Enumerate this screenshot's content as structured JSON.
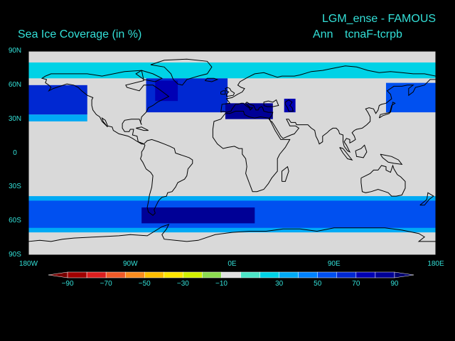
{
  "title": {
    "main": "LGM_ense - FAMOUS",
    "subtitle": "Sea Ice Coverage (in %)",
    "period": "Ann",
    "diff": "tcnaF-tcrpb"
  },
  "colors": {
    "background": "#000000",
    "text": "#33e0d8",
    "land": "#d9d9d9",
    "coast": "#000000"
  },
  "map": {
    "projection": "cylindrical-equidistant",
    "lon_range": [
      -180,
      180
    ],
    "lat_range": [
      -90,
      90
    ],
    "lat_ticks": [
      {
        "value": 90,
        "label": "90N"
      },
      {
        "value": 60,
        "label": "60N"
      },
      {
        "value": 30,
        "label": "30N"
      },
      {
        "value": 0,
        "label": "0"
      },
      {
        "value": -30,
        "label": "30S"
      },
      {
        "value": -60,
        "label": "60S"
      },
      {
        "value": -90,
        "label": "90S"
      }
    ],
    "lon_ticks": [
      {
        "value": -180,
        "label": "180W"
      },
      {
        "value": -90,
        "label": "90W"
      },
      {
        "value": 0,
        "label": "0E"
      },
      {
        "value": 90,
        "label": "90E"
      },
      {
        "value": 180,
        "label": "180E"
      }
    ],
    "field_regions": [
      {
        "name": "arctic-ring",
        "lon": [
          -180,
          180
        ],
        "lat": [
          66,
          80
        ],
        "value": 25
      },
      {
        "name": "north-pacific-west",
        "lon": [
          -180,
          -128
        ],
        "lat": [
          34,
          60
        ],
        "value": 60
      },
      {
        "name": "north-pacific-edge",
        "lon": [
          -180,
          -128
        ],
        "lat": [
          28,
          34
        ],
        "value": 35
      },
      {
        "name": "north-atlantic",
        "lon": [
          -76,
          -4
        ],
        "lat": [
          36,
          66
        ],
        "value": 60
      },
      {
        "name": "labrador-core",
        "lon": [
          -68,
          -48
        ],
        "lat": [
          46,
          64
        ],
        "value": 75
      },
      {
        "name": "mediterranean",
        "lon": [
          -6,
          36
        ],
        "lat": [
          30,
          44
        ],
        "value": 80
      },
      {
        "name": "caspian",
        "lon": [
          46,
          56
        ],
        "lat": [
          36,
          48
        ],
        "value": 75
      },
      {
        "name": "okhotsk",
        "lon": [
          136,
          180
        ],
        "lat": [
          36,
          62
        ],
        "value": 55
      },
      {
        "name": "southern-ocean-outer",
        "lon": [
          -180,
          180
        ],
        "lat": [
          -70,
          -38
        ],
        "value": 30
      },
      {
        "name": "southern-ocean-main",
        "lon": [
          -180,
          180
        ],
        "lat": [
          -66,
          -42
        ],
        "value": 55
      },
      {
        "name": "drake-weddell",
        "lon": [
          -80,
          20
        ],
        "lat": [
          -62,
          -48
        ],
        "value": 80
      }
    ]
  },
  "colorbar": {
    "levels": [
      -90,
      -80,
      -70,
      -60,
      -50,
      -40,
      -30,
      -20,
      -10,
      10,
      20,
      30,
      40,
      50,
      60,
      70,
      80,
      90
    ],
    "colors": [
      "#780000",
      "#a00000",
      "#dc1e1e",
      "#f05a28",
      "#fa8c1e",
      "#ffbe00",
      "#ffe600",
      "#d2f000",
      "#8cdc50",
      "#e0e0e0",
      "#4ce6c8",
      "#00d2e6",
      "#00aaf5",
      "#0082ff",
      "#0050f0",
      "#0028d2",
      "#0000b4",
      "#000096",
      "#00006e"
    ],
    "labels": [
      {
        "value": -90,
        "text": "−90"
      },
      {
        "value": -70,
        "text": "−70"
      },
      {
        "value": -50,
        "text": "−50"
      },
      {
        "value": -30,
        "text": "−30"
      },
      {
        "value": -10,
        "text": "−10"
      },
      {
        "value": 30,
        "text": "30"
      },
      {
        "value": 50,
        "text": "50"
      },
      {
        "value": 70,
        "text": "70"
      },
      {
        "value": 90,
        "text": "90"
      }
    ]
  }
}
